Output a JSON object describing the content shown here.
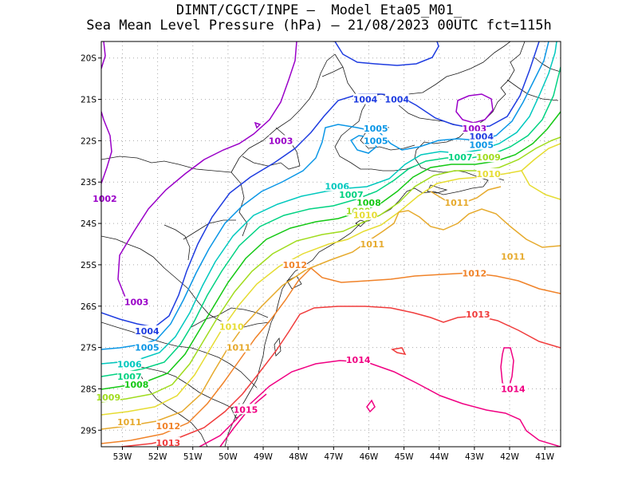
{
  "title": {
    "line1": "DIMNT/CGCT/INPE –  Model Eta05_M01_",
    "line2": "Sea Mean Level Pressure (hPa) – 21/08/2023 00UTC fct=115h"
  },
  "axes": {
    "lat_labels": [
      "20S",
      "21S",
      "22S",
      "23S",
      "24S",
      "25S",
      "26S",
      "27S",
      "28S",
      "29S"
    ],
    "lon_labels": [
      "53W",
      "52W",
      "51W",
      "50W",
      "49W",
      "48W",
      "47W",
      "46W",
      "45W",
      "44W",
      "43W",
      "42W",
      "41W"
    ]
  },
  "colors": {
    "1002": "#9a00c8",
    "1003": "#9a00c8",
    "1004": "#1e3ce0",
    "1005": "#0a96e6",
    "1006": "#00c8be",
    "1007": "#00d282",
    "1008": "#14c814",
    "1009": "#a0dc1e",
    "1010": "#e6dc32",
    "1011": "#e6aa2d",
    "1012": "#f08228",
    "1013": "#f03c3c",
    "1014": "#f00082",
    "1015": "#f00082"
  },
  "contour_labels": [
    {
      "text": "1002",
      "level": "1002",
      "lon": -53.5,
      "lat": -23.4
    },
    {
      "text": "1003",
      "level": "1003",
      "lon": -48.5,
      "lat": -22.0
    },
    {
      "text": "1003",
      "level": "1003",
      "lon": -52.6,
      "lat": -25.9
    },
    {
      "text": "1003",
      "level": "1003",
      "lon": -43.0,
      "lat": -21.7
    },
    {
      "text": "1004",
      "level": "1004",
      "lon": -46.1,
      "lat": -21.0
    },
    {
      "text": "1004",
      "level": "1004",
      "lon": -45.2,
      "lat": -21.0
    },
    {
      "text": "1004",
      "level": "1004",
      "lon": -52.3,
      "lat": -26.6
    },
    {
      "text": "1004",
      "level": "1004",
      "lon": -42.8,
      "lat": -21.9
    },
    {
      "text": "1005",
      "level": "1005",
      "lon": -45.8,
      "lat": -21.7
    },
    {
      "text": "1005",
      "level": "1005",
      "lon": -45.8,
      "lat": -22.0
    },
    {
      "text": "1005",
      "level": "1005",
      "lon": -52.3,
      "lat": -27.0
    },
    {
      "text": "1005",
      "level": "1005",
      "lon": -42.8,
      "lat": -22.1
    },
    {
      "text": "1006",
      "level": "1006",
      "lon": -46.9,
      "lat": -23.1
    },
    {
      "text": "1006",
      "level": "1006",
      "lon": -52.8,
      "lat": -27.4
    },
    {
      "text": "1007",
      "level": "1007",
      "lon": -46.5,
      "lat": -23.3
    },
    {
      "text": "1007",
      "level": "1007",
      "lon": -52.8,
      "lat": -27.7
    },
    {
      "text": "1007",
      "level": "1007",
      "lon": -43.4,
      "lat": -22.4
    },
    {
      "text": "1008",
      "level": "1008",
      "lon": -46.0,
      "lat": -23.5
    },
    {
      "text": "1008",
      "level": "1008",
      "lon": -52.6,
      "lat": -27.9
    },
    {
      "text": "1009",
      "level": "1009",
      "lon": -53.4,
      "lat": -28.2
    },
    {
      "text": "1009",
      "level": "1009",
      "lon": -42.6,
      "lat": -22.4
    },
    {
      "text": "1009",
      "level": "1009",
      "lon": -46.3,
      "lat": -23.7
    },
    {
      "text": "1010",
      "level": "1010",
      "lon": -46.1,
      "lat": -23.8
    },
    {
      "text": "1010",
      "level": "1010",
      "lon": -49.9,
      "lat": -26.5
    },
    {
      "text": "1010",
      "level": "1010",
      "lon": -42.6,
      "lat": -22.8
    },
    {
      "text": "1011",
      "level": "1011",
      "lon": -45.9,
      "lat": -24.5
    },
    {
      "text": "1011",
      "level": "1011",
      "lon": -43.5,
      "lat": -23.5
    },
    {
      "text": "1011",
      "level": "1011",
      "lon": -41.9,
      "lat": -24.8
    },
    {
      "text": "1011",
      "level": "1011",
      "lon": -49.7,
      "lat": -27.0
    },
    {
      "text": "1011",
      "level": "1011",
      "lon": -52.8,
      "lat": -28.8
    },
    {
      "text": "1012",
      "level": "1012",
      "lon": -48.1,
      "lat": -25.0
    },
    {
      "text": "1012",
      "level": "1012",
      "lon": -43.0,
      "lat": -25.2
    },
    {
      "text": "1012",
      "level": "1012",
      "lon": -51.7,
      "lat": -28.9
    },
    {
      "text": "1013",
      "level": "1013",
      "lon": -42.9,
      "lat": -26.2
    },
    {
      "text": "1013",
      "level": "1013",
      "lon": -51.7,
      "lat": -29.3
    },
    {
      "text": "1014",
      "level": "1014",
      "lon": -46.3,
      "lat": -27.3
    },
    {
      "text": "1014",
      "level": "1014",
      "lon": -41.9,
      "lat": -28.0
    },
    {
      "text": "1015",
      "level": "1015",
      "lon": -49.5,
      "lat": -28.5
    }
  ]
}
